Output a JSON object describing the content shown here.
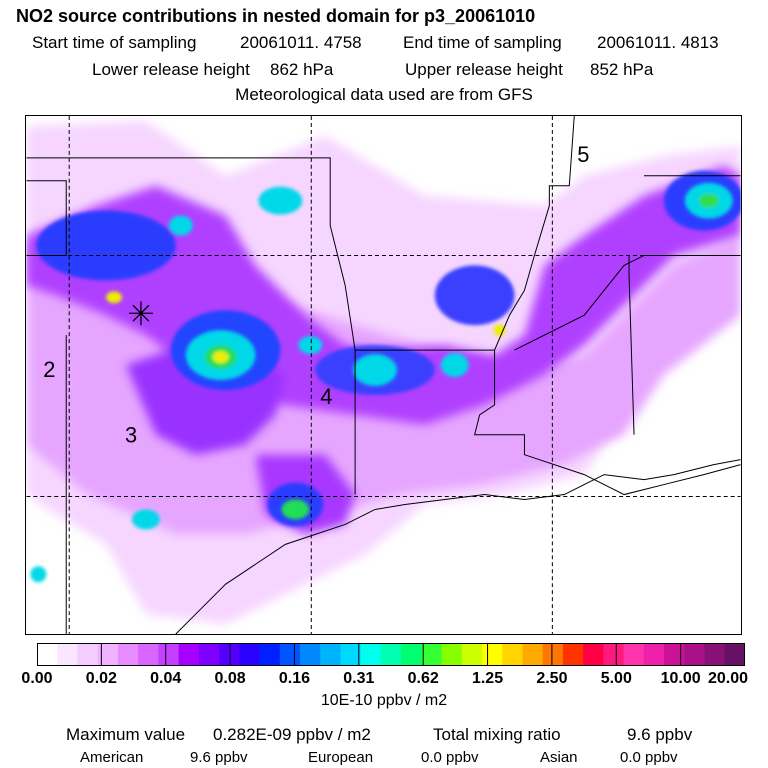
{
  "title": "NO2 source contributions in nested domain for p3_20061010",
  "sampling": {
    "start_label": "Start time of sampling",
    "start_value": "20061011.  4758",
    "end_label": "End time of sampling",
    "end_value": "20061011.  4813"
  },
  "release": {
    "lower_label": "Lower release height",
    "lower_value": "862 hPa",
    "upper_label": "Upper release height",
    "upper_value": "852 hPa"
  },
  "met_note": "Meteorological data used are from GFS",
  "map": {
    "region_labels": [
      "2",
      "3",
      "4",
      "5"
    ],
    "colors": {
      "low": "#f4ccff",
      "mid": "#8b00ff",
      "high": "#0033ff",
      "cyan": "#00e5e5",
      "green": "#00dd66",
      "yellow": "#eeee00"
    }
  },
  "colorbar": {
    "colors": [
      "#ffffff",
      "#fbe6ff",
      "#f5ccff",
      "#f0b3ff",
      "#e68cff",
      "#d966ff",
      "#c440ff",
      "#a800ff",
      "#8000ff",
      "#5500ff",
      "#2a00ff",
      "#0020ff",
      "#0055ff",
      "#0088ff",
      "#00b3ff",
      "#00d9ff",
      "#00ffee",
      "#00ffb0",
      "#00ff70",
      "#33ff33",
      "#88ff00",
      "#ccff00",
      "#ffff00",
      "#ffd400",
      "#ffaa00",
      "#ff7700",
      "#ff3300",
      "#ff0044",
      "#ff1a80",
      "#ff33aa",
      "#ee22aa",
      "#cc1199",
      "#aa1188",
      "#881177",
      "#661166"
    ],
    "ticks": [
      "0.00",
      "0.02",
      "0.04",
      "0.08",
      "0.16",
      "0.31",
      "0.62",
      "1.25",
      "2.50",
      "5.00",
      "10.00",
      "20.00"
    ],
    "units": "10E-10 ppbv / m2"
  },
  "stats": {
    "max_label": "Maximum value",
    "max_value": "0.282E-09 ppbv / m2",
    "total_label": "Total mixing ratio",
    "total_value": "9.6 ppbv",
    "american_label": "American",
    "american_value": "9.6 ppbv",
    "european_label": "European",
    "european_value": "0.0 ppbv",
    "asian_label": "Asian",
    "asian_value": "0.0 ppbv"
  }
}
